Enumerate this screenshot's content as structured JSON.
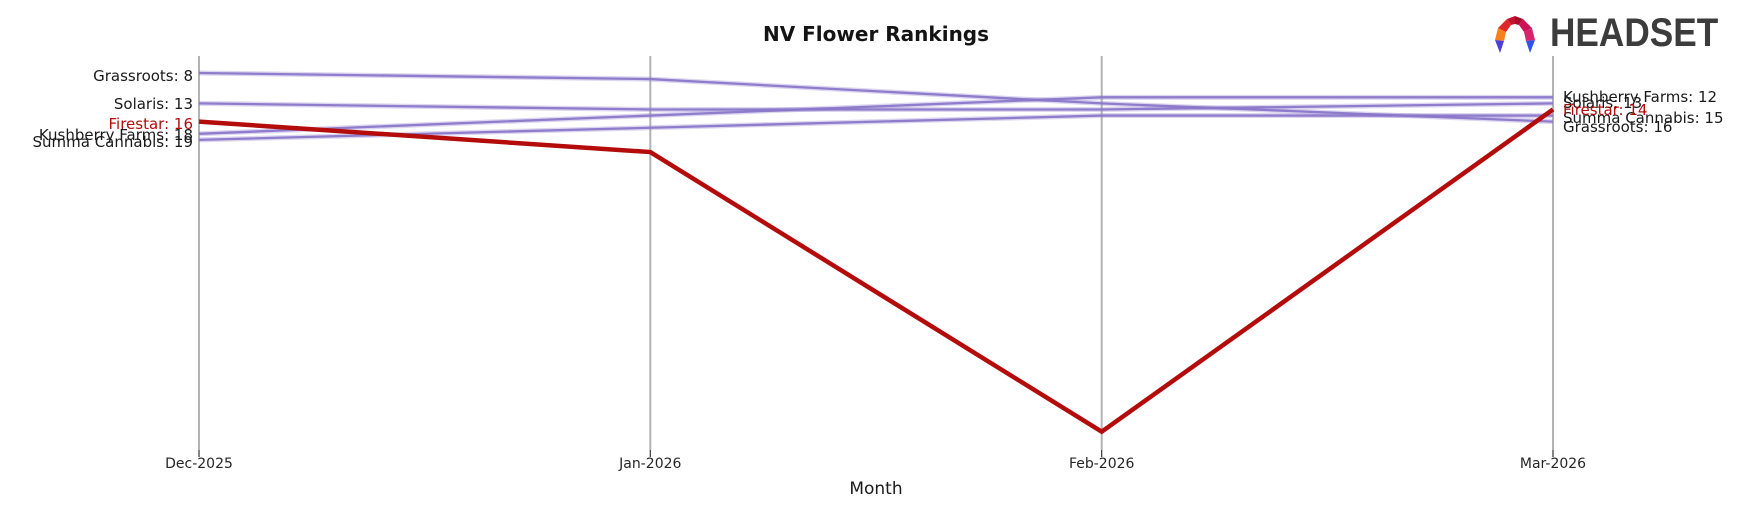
{
  "title": "NV Flower Rankings",
  "xlabel": "Month",
  "logo": {
    "brand": "HEADSET"
  },
  "colors": {
    "line_purple": "#8a77c9",
    "line_red": "#b40b0b",
    "gridline": "#b3b3b3",
    "text": "#1a1a1a"
  },
  "chart_data": {
    "type": "line",
    "title": "NV Flower Rankings",
    "xlabel": "Month",
    "ylabel": "",
    "categories": [
      "Dec-2025",
      "Jan-2026",
      "Feb-2026",
      "Mar-2026"
    ],
    "y_axis": {
      "meaning": "brand sales rank (1 = best, lower rank plotted higher)",
      "inverted": true,
      "tick_labels": "none",
      "visible_rank_span": [
        5,
        70
      ]
    },
    "grid": "vertical-only",
    "legend_position": "labels-at-line-ends",
    "series": [
      {
        "name": "Grassroots",
        "color": "#8a77c9",
        "values": [
          8,
          9,
          13,
          16
        ],
        "start_label": "Grassroots: 8",
        "end_label": "Grassroots: 16",
        "emphasis": false
      },
      {
        "name": "Solaris",
        "color": "#8a77c9",
        "values": [
          13,
          14,
          14,
          13
        ],
        "start_label": "Solaris: 13",
        "end_label": "Solaris: 13",
        "emphasis": false
      },
      {
        "name": "Kushberry Farms",
        "color": "#8a77c9",
        "values": [
          18,
          15,
          12,
          12
        ],
        "start_label": "Kushberry Farms: 18",
        "end_label": "Kushberry Farms: 12",
        "emphasis": false
      },
      {
        "name": "Summa Cannabis",
        "color": "#8a77c9",
        "values": [
          19,
          17,
          15,
          15
        ],
        "start_label": "Summa Cannabis: 19",
        "end_label": "Summa Cannabis: 15",
        "emphasis": false
      },
      {
        "name": "Firestar",
        "color": "#b40b0b",
        "values": [
          16,
          21,
          67,
          14
        ],
        "start_label": "Firestar: 16",
        "end_label": "Firestar: 14",
        "emphasis": true
      }
    ]
  }
}
